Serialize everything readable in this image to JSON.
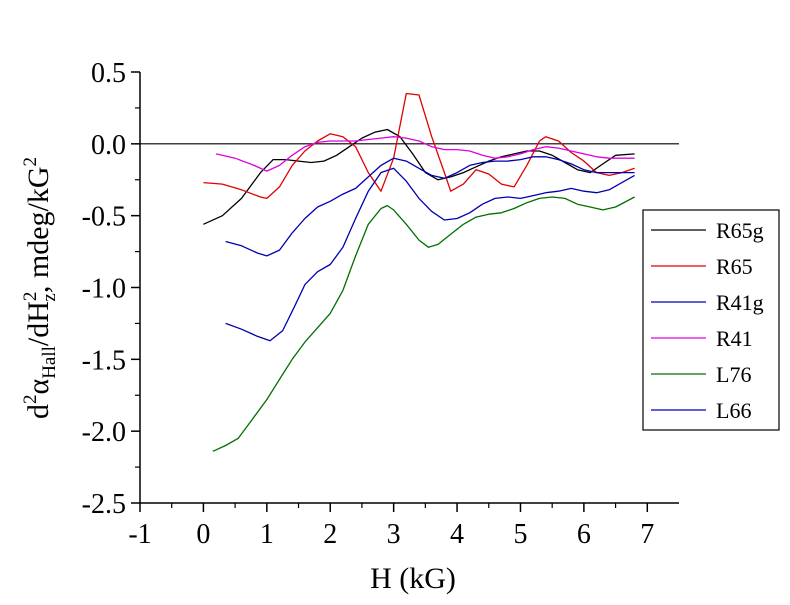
{
  "chart_data": {
    "type": "line",
    "xlabel": "H (kG)",
    "ylabel_parts": {
      "d": "d",
      "sup2a": "2",
      "alpha": "α",
      "hall": "Hall",
      "mid": "/dH",
      "sup2b": "2",
      "z": "z",
      "unit": ", mdeg/kG",
      "sup2c": "2"
    },
    "xlim": [
      -1,
      7.5
    ],
    "ylim": [
      -2.5,
      0.5
    ],
    "xticks": [
      -1,
      0,
      1,
      2,
      3,
      4,
      5,
      6,
      7
    ],
    "xtick_labels": [
      "-1",
      "0",
      "1",
      "2",
      "3",
      "4",
      "5",
      "6",
      "7"
    ],
    "yticks": [
      0.5,
      0.0,
      -0.5,
      -1.0,
      -1.5,
      -2.0,
      -2.5
    ],
    "ytick_labels": [
      "0.5",
      "0.0",
      "-0.5",
      "-1.0",
      "-1.5",
      "-2.0",
      "-2.5"
    ],
    "zero_line": true,
    "grid": false,
    "legend_position": "right",
    "series": [
      {
        "name": "R65g",
        "color": "#000000",
        "x": [
          0.0,
          0.3,
          0.6,
          0.9,
          1.1,
          1.3,
          1.5,
          1.7,
          1.9,
          2.1,
          2.3,
          2.5,
          2.7,
          2.9,
          3.1,
          3.3,
          3.5,
          3.7,
          3.9,
          4.1,
          4.3,
          4.5,
          4.7,
          4.9,
          5.1,
          5.3,
          5.5,
          5.7,
          5.9,
          6.1,
          6.3,
          6.5,
          6.8
        ],
        "y": [
          -0.56,
          -0.5,
          -0.38,
          -0.2,
          -0.11,
          -0.11,
          -0.12,
          -0.13,
          -0.12,
          -0.08,
          -0.02,
          0.04,
          0.08,
          0.1,
          0.05,
          -0.07,
          -0.2,
          -0.25,
          -0.23,
          -0.2,
          -0.16,
          -0.12,
          -0.09,
          -0.07,
          -0.05,
          -0.05,
          -0.08,
          -0.13,
          -0.18,
          -0.2,
          -0.14,
          -0.08,
          -0.07
        ]
      },
      {
        "name": "R65",
        "color": "#e00000",
        "x": [
          0.0,
          0.3,
          0.6,
          0.9,
          1.0,
          1.2,
          1.4,
          1.6,
          1.8,
          2.0,
          2.2,
          2.4,
          2.6,
          2.8,
          3.0,
          3.2,
          3.4,
          3.6,
          3.8,
          3.9,
          4.1,
          4.3,
          4.5,
          4.7,
          4.9,
          5.1,
          5.3,
          5.4,
          5.6,
          5.8,
          6.0,
          6.2,
          6.4,
          6.6,
          6.8
        ],
        "y": [
          -0.27,
          -0.28,
          -0.32,
          -0.37,
          -0.38,
          -0.3,
          -0.15,
          -0.05,
          0.02,
          0.07,
          0.05,
          -0.02,
          -0.2,
          -0.33,
          -0.1,
          0.35,
          0.34,
          0.05,
          -0.2,
          -0.33,
          -0.28,
          -0.18,
          -0.21,
          -0.28,
          -0.3,
          -0.15,
          0.02,
          0.05,
          0.02,
          -0.06,
          -0.12,
          -0.2,
          -0.22,
          -0.2,
          -0.17
        ]
      },
      {
        "name": "R41g",
        "color": "#0000b0",
        "x": [
          0.35,
          0.6,
          0.85,
          1.0,
          1.2,
          1.4,
          1.6,
          1.8,
          2.0,
          2.2,
          2.4,
          2.6,
          2.8,
          3.0,
          3.2,
          3.4,
          3.6,
          3.8,
          4.0,
          4.2,
          4.4,
          4.6,
          4.8,
          5.0,
          5.2,
          5.4,
          5.6,
          5.8,
          6.0,
          6.2,
          6.4,
          6.6,
          6.8
        ],
        "y": [
          -0.68,
          -0.71,
          -0.76,
          -0.78,
          -0.74,
          -0.62,
          -0.52,
          -0.44,
          -0.4,
          -0.35,
          -0.31,
          -0.23,
          -0.15,
          -0.1,
          -0.12,
          -0.17,
          -0.22,
          -0.24,
          -0.2,
          -0.15,
          -0.13,
          -0.12,
          -0.12,
          -0.11,
          -0.09,
          -0.09,
          -0.11,
          -0.14,
          -0.18,
          -0.2,
          -0.2,
          -0.2,
          -0.2
        ]
      },
      {
        "name": "R41",
        "color": "#e000e0",
        "x": [
          0.2,
          0.5,
          0.8,
          1.0,
          1.2,
          1.4,
          1.6,
          1.8,
          2.0,
          2.2,
          2.4,
          2.6,
          2.8,
          3.0,
          3.2,
          3.4,
          3.6,
          3.8,
          4.0,
          4.2,
          4.4,
          4.6,
          4.8,
          5.0,
          5.2,
          5.4,
          5.6,
          5.8,
          6.0,
          6.2,
          6.4,
          6.6,
          6.8
        ],
        "y": [
          -0.07,
          -0.1,
          -0.15,
          -0.19,
          -0.15,
          -0.08,
          -0.02,
          0.01,
          0.02,
          0.02,
          0.02,
          0.03,
          0.04,
          0.05,
          0.04,
          0.02,
          -0.02,
          -0.04,
          -0.04,
          -0.05,
          -0.08,
          -0.1,
          -0.09,
          -0.07,
          -0.04,
          -0.02,
          -0.03,
          -0.05,
          -0.07,
          -0.09,
          -0.1,
          -0.1,
          -0.1
        ]
      },
      {
        "name": "L76",
        "color": "#007000",
        "x": [
          0.15,
          0.35,
          0.55,
          0.75,
          1.0,
          1.2,
          1.4,
          1.6,
          1.8,
          2.0,
          2.2,
          2.4,
          2.6,
          2.8,
          2.9,
          3.0,
          3.2,
          3.4,
          3.55,
          3.7,
          3.9,
          4.1,
          4.3,
          4.5,
          4.7,
          4.9,
          5.1,
          5.3,
          5.5,
          5.7,
          5.9,
          6.1,
          6.3,
          6.5,
          6.8
        ],
        "y": [
          -2.14,
          -2.1,
          -2.05,
          -1.93,
          -1.78,
          -1.64,
          -1.5,
          -1.38,
          -1.28,
          -1.18,
          -1.02,
          -0.78,
          -0.56,
          -0.45,
          -0.43,
          -0.46,
          -0.56,
          -0.67,
          -0.72,
          -0.7,
          -0.63,
          -0.56,
          -0.51,
          -0.49,
          -0.48,
          -0.45,
          -0.41,
          -0.38,
          -0.37,
          -0.38,
          -0.42,
          -0.44,
          -0.46,
          -0.44,
          -0.37
        ]
      },
      {
        "name": "L66",
        "color": "#0000b0",
        "x": [
          0.35,
          0.6,
          0.85,
          1.05,
          1.25,
          1.45,
          1.6,
          1.8,
          2.0,
          2.2,
          2.4,
          2.6,
          2.8,
          3.0,
          3.2,
          3.4,
          3.6,
          3.8,
          4.0,
          4.2,
          4.4,
          4.6,
          4.8,
          5.0,
          5.2,
          5.4,
          5.6,
          5.8,
          6.0,
          6.2,
          6.4,
          6.6,
          6.8
        ],
        "y": [
          -1.25,
          -1.29,
          -1.34,
          -1.37,
          -1.3,
          -1.12,
          -0.98,
          -0.89,
          -0.84,
          -0.72,
          -0.52,
          -0.33,
          -0.2,
          -0.17,
          -0.26,
          -0.38,
          -0.47,
          -0.53,
          -0.52,
          -0.48,
          -0.42,
          -0.38,
          -0.37,
          -0.38,
          -0.36,
          -0.34,
          -0.33,
          -0.31,
          -0.33,
          -0.34,
          -0.32,
          -0.27,
          -0.22
        ]
      }
    ]
  }
}
